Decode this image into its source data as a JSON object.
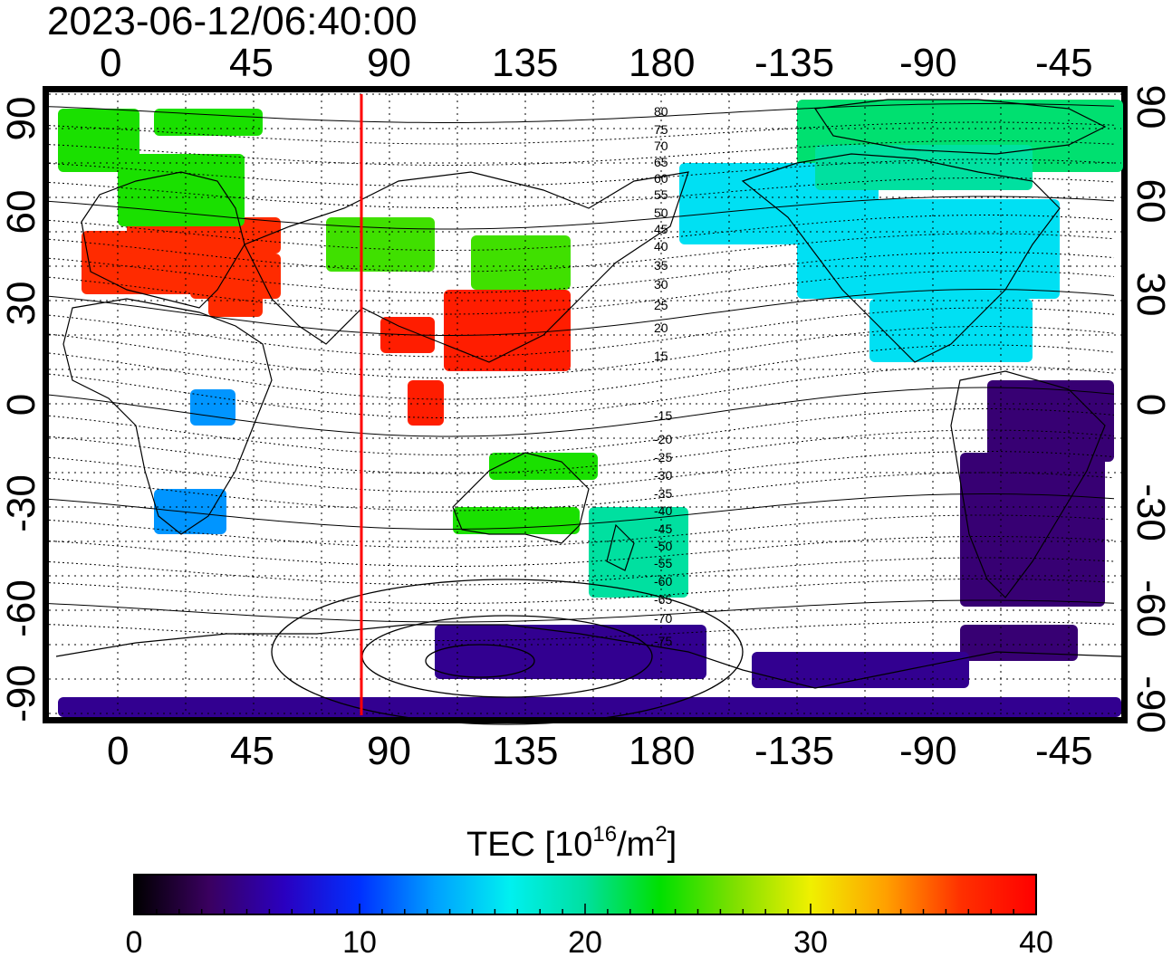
{
  "title": "2023-06-12/06:40:00",
  "longitude_ticks": [
    "0",
    "45",
    "90",
    "135",
    "180",
    "-135",
    "-90",
    "-45"
  ],
  "latitude_ticks": [
    "90",
    "60",
    "30",
    "0",
    "-30",
    "-60",
    "-90"
  ],
  "colorbar": {
    "title_main": "TEC  [10",
    "title_sup1": "16",
    "title_mid": "/m",
    "title_sup2": "2",
    "title_end": "]",
    "ticks": [
      "0",
      "10",
      "20",
      "30",
      "40"
    ],
    "range": [
      0,
      40
    ]
  },
  "marker_longitude": 80,
  "contour_labels_north": [
    "80",
    "75",
    "70",
    "65",
    "60",
    "55",
    "50",
    "45",
    "40",
    "35",
    "30",
    "25",
    "20",
    "15"
  ],
  "contour_labels_south": [
    "-15",
    "-20",
    "-25",
    "-30",
    "-35",
    "-40",
    "-45",
    "-50",
    "-55",
    "-60",
    "-65",
    "-70",
    "-75"
  ],
  "colors": {
    "marker_line": "#ff0000",
    "gridline": "#000000",
    "colormap": [
      "#000000",
      "#3a0060",
      "#2a00c0",
      "#0030ff",
      "#00a0ff",
      "#00f0f0",
      "#00e0a0",
      "#00e000",
      "#80e000",
      "#f0f000",
      "#ffa000",
      "#ff3000",
      "#ff0000"
    ]
  },
  "tec_regions": [
    {
      "name": "europe",
      "tec": 37
    },
    {
      "name": "north-europe",
      "tec": 24
    },
    {
      "name": "greenland",
      "tec": 21
    },
    {
      "name": "north-america",
      "tec": 16
    },
    {
      "name": "canada-arctic",
      "tec": 20
    },
    {
      "name": "east-asia",
      "tec": 38
    },
    {
      "name": "japan",
      "tec": 25
    },
    {
      "name": "south-america",
      "tec": 4
    },
    {
      "name": "antarctica",
      "tec": 5
    },
    {
      "name": "southern-africa",
      "tec": 13
    },
    {
      "name": "australia",
      "tec": 24
    },
    {
      "name": "new-zealand",
      "tec": 20
    }
  ]
}
